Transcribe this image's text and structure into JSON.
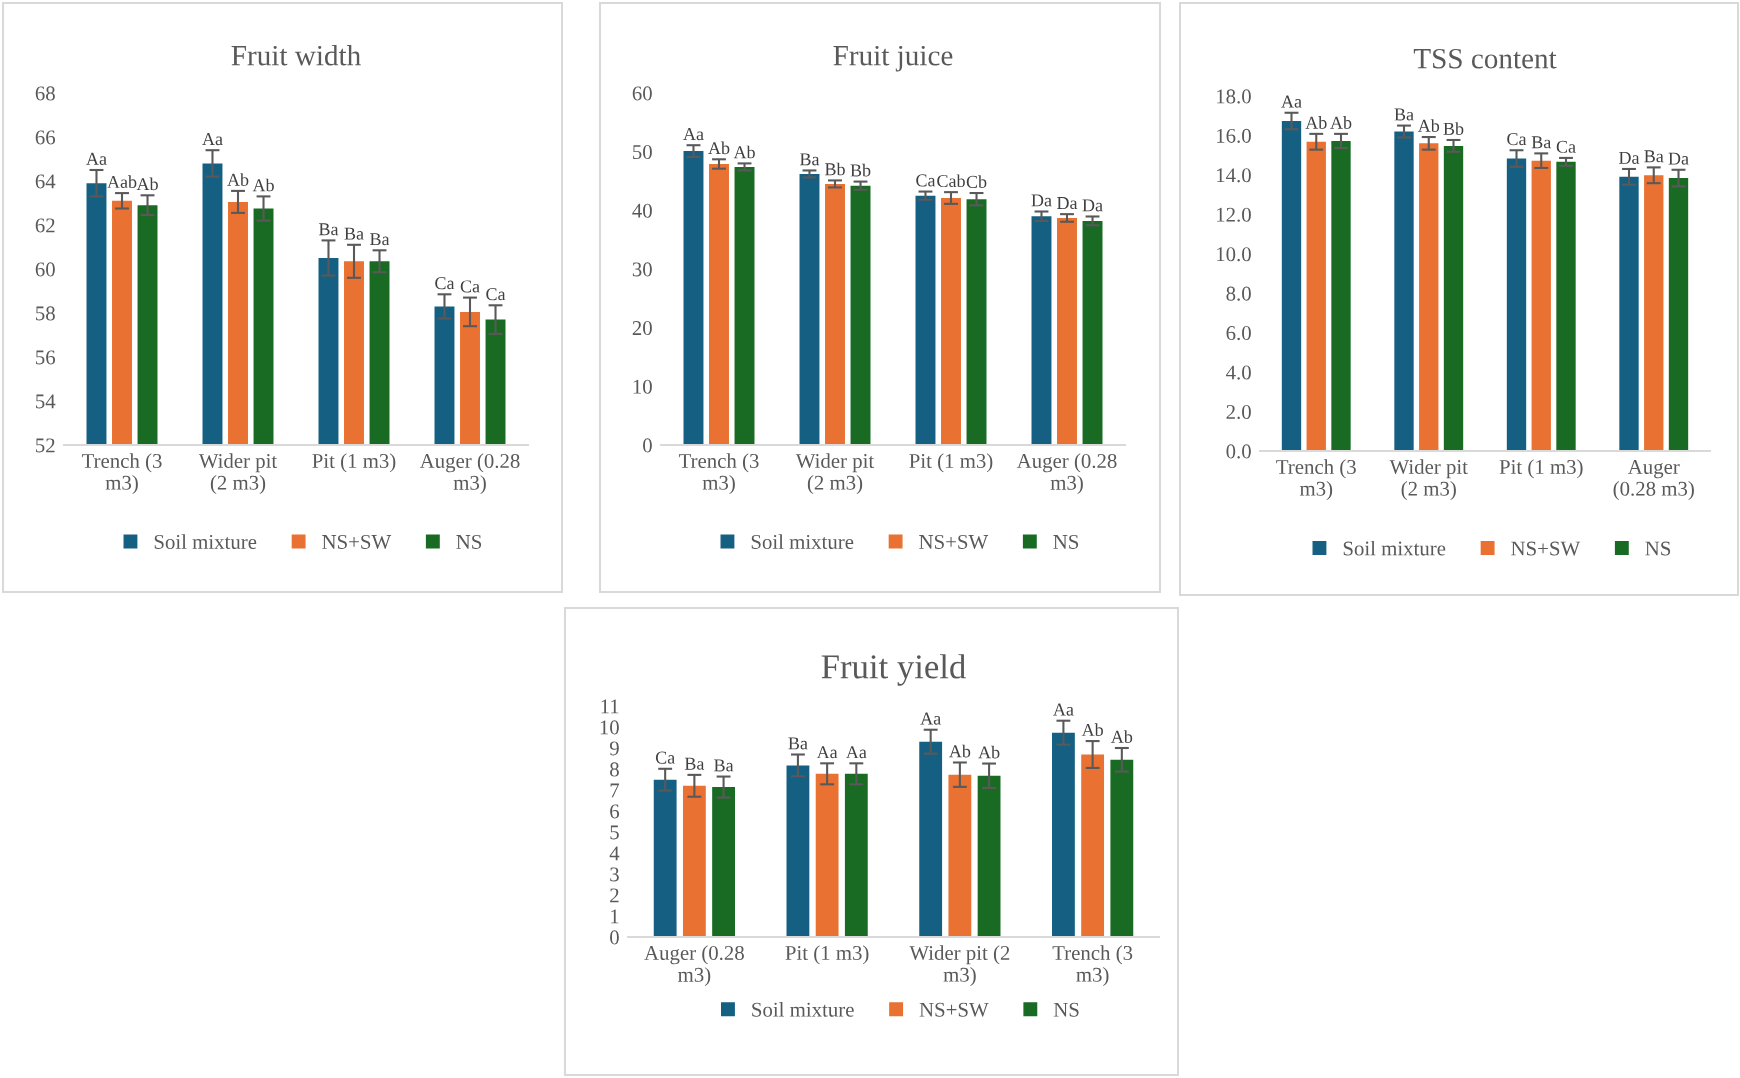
{
  "chart_data": [
    {
      "type": "bar",
      "title": "Fruit width",
      "categories": [
        "Trench (3\nm3)",
        "Wider pit\n(2 m3)",
        "Pit (1 m3)",
        "Auger (0.28\nm3)"
      ],
      "ylim": [
        52,
        68
      ],
      "yticks": [
        52,
        54,
        56,
        58,
        60,
        62,
        64,
        66,
        68
      ],
      "grid": false,
      "legend": "bottom",
      "series": [
        {
          "name": "Soil mixture",
          "color": "#156082",
          "values": [
            63.9,
            64.8,
            60.5,
            58.3
          ],
          "errors": [
            0.6,
            0.6,
            0.8,
            0.55
          ],
          "value_labels": [
            "Aa",
            "Aa",
            "Ba",
            "Ca"
          ]
        },
        {
          "name": "NS+SW",
          "color": "#e97132",
          "values": [
            63.1,
            63.05,
            60.35,
            58.05
          ],
          "errors": [
            0.35,
            0.5,
            0.75,
            0.65
          ],
          "value_labels": [
            "Aab",
            "Ab",
            "Ba",
            "Ca"
          ]
        },
        {
          "name": "NS",
          "color": "#196b24",
          "values": [
            62.9,
            62.75,
            60.35,
            57.7
          ],
          "errors": [
            0.45,
            0.55,
            0.5,
            0.65
          ],
          "value_labels": [
            "Ab",
            "Ab",
            "Ba",
            "Ca"
          ]
        }
      ]
    },
    {
      "type": "bar",
      "title": "Fruit juice",
      "categories": [
        "Trench (3\nm3)",
        "Wider pit\n(2 m3)",
        "Pit (1 m3)",
        "Auger (0.28\nm3)"
      ],
      "ylim": [
        0,
        60
      ],
      "yticks": [
        0,
        10,
        20,
        30,
        40,
        50,
        60
      ],
      "grid": false,
      "legend": "bottom",
      "series": [
        {
          "name": "Soil mixture",
          "color": "#156082",
          "values": [
            50.1,
            46.2,
            42.5,
            39.0
          ],
          "errors": [
            1.0,
            0.6,
            0.7,
            0.8
          ],
          "value_labels": [
            "Aa",
            "Ba",
            "Ca",
            "Da"
          ]
        },
        {
          "name": "NS+SW",
          "color": "#e97132",
          "values": [
            47.9,
            44.5,
            42.1,
            38.7
          ],
          "errors": [
            0.8,
            0.6,
            1.0,
            0.65
          ],
          "value_labels": [
            "Ab",
            "Bb",
            "Cab",
            "Da"
          ]
        },
        {
          "name": "NS",
          "color": "#196b24",
          "values": [
            47.4,
            44.2,
            41.9,
            38.2
          ],
          "errors": [
            0.6,
            0.7,
            1.05,
            0.75
          ],
          "value_labels": [
            "Ab",
            "Bb",
            "Cb",
            "Da"
          ]
        }
      ]
    },
    {
      "type": "bar",
      "title": "TSS content",
      "categories": [
        "Trench (3\nm3)",
        "Wider pit\n(2 m3)",
        "Pit (1 m3)",
        "Auger\n(0.28 m3)"
      ],
      "ylim": [
        0,
        18
      ],
      "yticks": [
        {
          "value": 0,
          "label": "0.0"
        },
        {
          "value": 2,
          "label": "2.0"
        },
        {
          "value": 4,
          "label": "4.0"
        },
        {
          "value": 6,
          "label": "6.0"
        },
        {
          "value": 8,
          "label": "8.0"
        },
        {
          "value": 10,
          "label": "10.0"
        },
        {
          "value": 12,
          "label": "12.0"
        },
        {
          "value": 14,
          "label": "14.0"
        },
        {
          "value": 16,
          "label": "16.0"
        },
        {
          "value": 18,
          "label": "18.0"
        }
      ],
      "grid": false,
      "legend": "bottom",
      "series": [
        {
          "name": "Soil mixture",
          "color": "#156082",
          "values": [
            16.73,
            16.2,
            14.83,
            13.9
          ],
          "errors": [
            0.42,
            0.3,
            0.42,
            0.4
          ],
          "value_labels": [
            "Aa",
            "Ba",
            "Ca",
            "Da"
          ]
        },
        {
          "name": "NS+SW",
          "color": "#e97132",
          "values": [
            15.68,
            15.6,
            14.72,
            13.98
          ],
          "errors": [
            0.4,
            0.32,
            0.37,
            0.4
          ],
          "value_labels": [
            "Ab",
            "Ab",
            "Ba",
            "Ba"
          ]
        },
        {
          "name": "NS",
          "color": "#196b24",
          "values": [
            15.72,
            15.47,
            14.66,
            13.84
          ],
          "errors": [
            0.36,
            0.3,
            0.2,
            0.42
          ],
          "value_labels": [
            "Ab",
            "Bb",
            "Ca",
            "Da"
          ]
        }
      ]
    },
    {
      "type": "bar",
      "title": "Fruit yield",
      "categories": [
        "Auger (0.28\nm3)",
        "Pit (1 m3)",
        "Wider pit (2\nm3)",
        "Trench (3\nm3)"
      ],
      "ylim": [
        0,
        11
      ],
      "yticks": [
        0,
        1,
        2,
        3,
        4,
        5,
        6,
        7,
        8,
        9,
        10,
        11
      ],
      "grid": false,
      "legend": "bottom",
      "series": [
        {
          "name": "Soil mixture",
          "color": "#156082",
          "values": [
            7.49,
            8.17,
            9.3,
            9.73
          ],
          "errors": [
            0.52,
            0.52,
            0.57,
            0.57
          ],
          "value_labels": [
            "Ca",
            "Ba",
            "Aa",
            "Aa"
          ]
        },
        {
          "name": "NS+SW",
          "color": "#e97132",
          "values": [
            7.2,
            7.77,
            7.73,
            8.69
          ],
          "errors": [
            0.52,
            0.5,
            0.58,
            0.64
          ],
          "value_labels": [
            "Ba",
            "Aa",
            "Ab",
            "Ab"
          ]
        },
        {
          "name": "NS",
          "color": "#196b24",
          "values": [
            7.14,
            7.77,
            7.68,
            8.44
          ],
          "errors": [
            0.5,
            0.5,
            0.58,
            0.56
          ],
          "value_labels": [
            "Ba",
            "Aa",
            "Ab",
            "Ab"
          ]
        }
      ]
    }
  ]
}
